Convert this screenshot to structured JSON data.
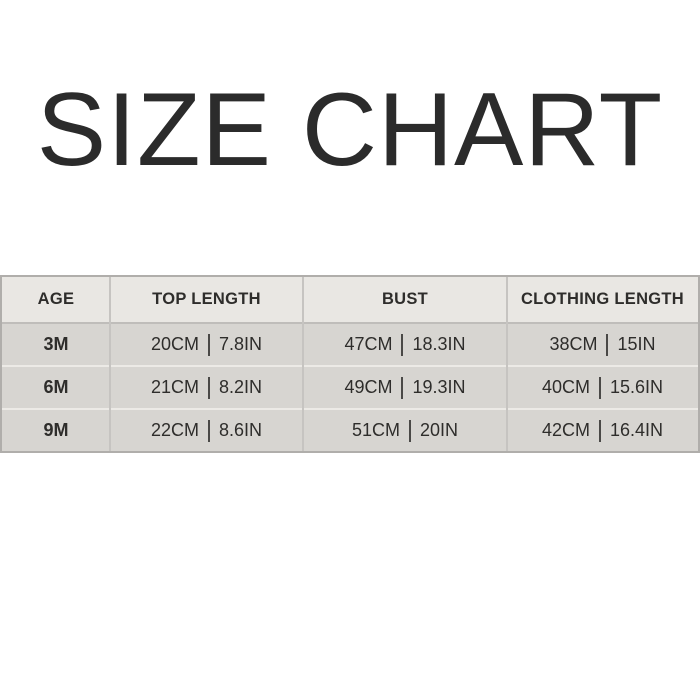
{
  "title": {
    "text": "SIZE CHART"
  },
  "size_table": {
    "headers": [
      "AGE",
      "TOP LENGTH",
      "BUST",
      "CLOTHING LENGTH"
    ],
    "rows": [
      {
        "age": "3M",
        "top_length_cm": "20CM",
        "top_length_in": "7.8IN",
        "bust_cm": "47CM",
        "bust_in": "18.3IN",
        "clothing_cm": "38CM",
        "clothing_in": "15IN"
      },
      {
        "age": "6M",
        "top_length_cm": "21CM",
        "top_length_in": "8.2IN",
        "bust_cm": "49CM",
        "bust_in": "19.3IN",
        "clothing_cm": "40CM",
        "clothing_in": "15.6IN"
      },
      {
        "age": "9M",
        "top_length_cm": "22CM",
        "top_length_in": "8.6IN",
        "bust_cm": "51CM",
        "bust_in": "20IN",
        "clothing_cm": "42CM",
        "clothing_in": "16.4IN"
      }
    ]
  },
  "colors": {
    "page_background": "#ffffff",
    "title_text": "#2b2b2b",
    "header_background": "#e9e7e3",
    "row_background": "#d7d5d1",
    "outer_border": "#b0aeab",
    "table_text": "#2e2d2b"
  },
  "chart_data": {
    "type": "table",
    "title": "SIZE CHART",
    "columns": [
      "AGE",
      "TOP LENGTH",
      "BUST",
      "CLOTHING LENGTH"
    ],
    "rows": [
      [
        "3M",
        "20CM | 7.8IN",
        "47CM | 18.3IN",
        "38CM | 15IN"
      ],
      [
        "6M",
        "21CM | 8.2IN",
        "49CM | 19.3IN",
        "40CM | 15.6IN"
      ],
      [
        "9M",
        "22CM | 8.6IN",
        "51CM | 20IN",
        "42CM | 16.4IN"
      ]
    ],
    "units": {
      "measurements": [
        "cm",
        "in"
      ]
    },
    "layout": {
      "header_row": true,
      "grid": true
    }
  }
}
